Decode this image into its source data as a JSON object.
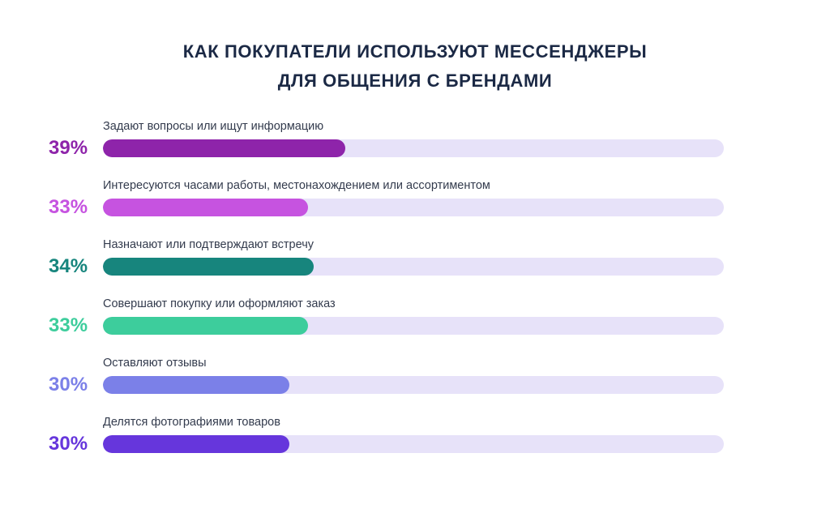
{
  "header": {
    "line1": "КАК ПОКУПАТЕЛИ ИСПОЛЬЗУЮТ МЕССЕНДЖЕРЫ",
    "line2": "ДЛЯ ОБЩЕНИЯ С БРЕНДАМИ"
  },
  "chart_data": {
    "type": "bar",
    "orientation": "horizontal",
    "title": "КАК ПОКУПАТЕЛИ ИСПОЛЬЗУЮТ МЕССЕНДЖЕРЫ ДЛЯ ОБЩЕНИЯ С БРЕНДАМИ",
    "unit": "%",
    "value_range": [
      0,
      100
    ],
    "grid": false,
    "legend": false,
    "background_color": "#FFFFFF",
    "track_color": "#E7E2F9",
    "title_color": "#1B2945",
    "label_color": "#333B4D",
    "bars": [
      {
        "label": "Задают вопросы или ищут информацию",
        "value": 39,
        "display": "39%",
        "color": "#8E24AA"
      },
      {
        "label": "Интересуются часами работы, местонахождением или ассортиментом",
        "value": 33,
        "display": "33%",
        "color": "#C653E0"
      },
      {
        "label": "Назначают или подтверждают встречу",
        "value": 34,
        "display": "34%",
        "color": "#17857D"
      },
      {
        "label": "Совершают покупку или оформляют заказ",
        "value": 33,
        "display": "33%",
        "color": "#3DCD9C"
      },
      {
        "label": "Оставляют отзывы",
        "value": 30,
        "display": "30%",
        "color": "#7B80E8"
      },
      {
        "label": "Делятся фотографиями товаров",
        "value": 30,
        "display": "30%",
        "color": "#6636DC"
      }
    ]
  }
}
